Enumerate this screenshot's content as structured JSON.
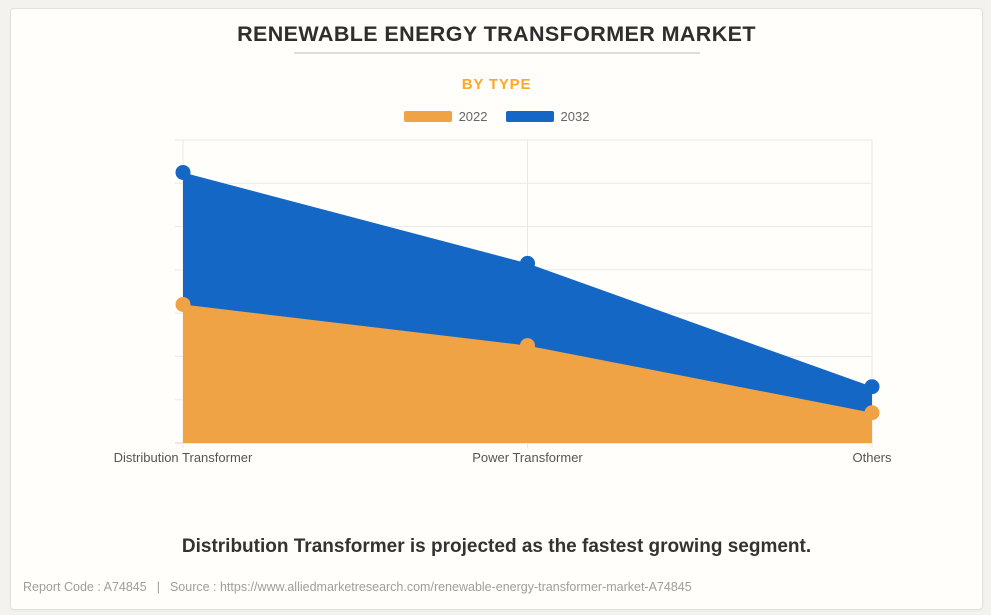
{
  "header": {
    "title": "RENEWABLE ENERGY TRANSFORMER MARKET",
    "subtitle": "BY TYPE",
    "subtitle_color": "#FFA726"
  },
  "chart_data": {
    "type": "area",
    "title": "RENEWABLE ENERGY TRANSFORMER MARKET",
    "subtitle": "BY TYPE",
    "categories": [
      "Distribution Transformer",
      "Power Transformer",
      "Others"
    ],
    "series": [
      {
        "name": "2022",
        "color": "#EFA344",
        "values": [
          3.2,
          2.25,
          0.7
        ]
      },
      {
        "name": "2032",
        "color": "#1467C4",
        "values": [
          6.25,
          4.15,
          1.3
        ]
      }
    ],
    "xlabel": "",
    "ylabel": "",
    "ylim": [
      0,
      7
    ],
    "grid": true,
    "legend_position": "top",
    "grid_color": "#eae8e4",
    "axis_color": "#d8d6d2"
  },
  "annotation": "Distribution Transformer is projected as the fastest growing segment.",
  "footer": {
    "report_code": "Report Code : A74845",
    "separator": "|",
    "source": "Source : https://www.alliedmarketresearch.com/renewable-energy-transformer-market-A74845"
  }
}
